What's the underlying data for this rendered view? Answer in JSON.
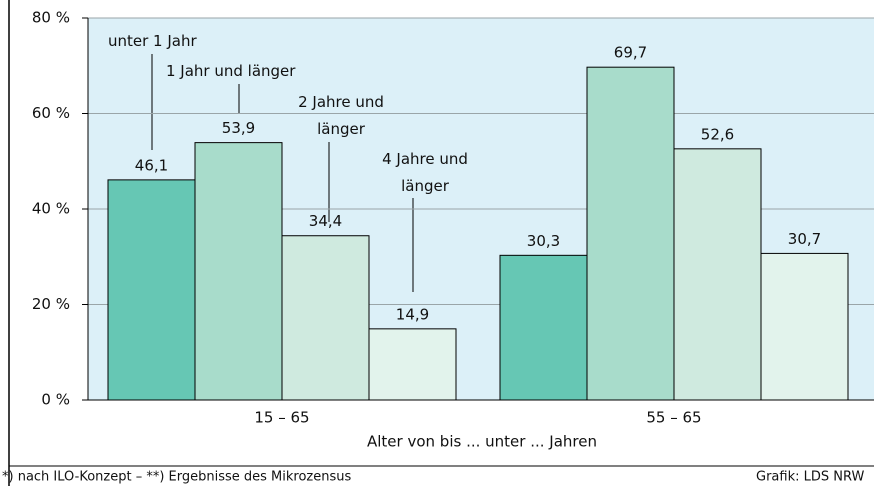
{
  "chart_data": {
    "type": "bar",
    "categories": [
      "15 – 65",
      "55 – 65"
    ],
    "x_label": "Alter von bis ... unter ... Jahren",
    "series": [
      {
        "name": "unter 1 Jahr",
        "color": "#66c7b4",
        "values": [
          46.1,
          30.3
        ],
        "value_labels": [
          "46,1",
          "30,3"
        ]
      },
      {
        "name": "1 Jahr und länger",
        "color": "#a8dccb",
        "values": [
          53.9,
          69.7
        ],
        "value_labels": [
          "53,9",
          "69,7"
        ]
      },
      {
        "name": "2 Jahre und länger",
        "color": "#cfeadf",
        "values": [
          34.4,
          52.6
        ],
        "value_labels": [
          "34,4",
          "52,6"
        ]
      },
      {
        "name": "4 Jahre und länger",
        "color": "#e2f3ec",
        "values": [
          14.9,
          30.7
        ],
        "value_labels": [
          "14,9",
          "30,7"
        ]
      }
    ],
    "ylim": [
      0,
      80
    ],
    "yticks": [
      {
        "value": 0,
        "label": "0 %"
      },
      {
        "value": 20,
        "label": "20 %"
      },
      {
        "value": 40,
        "label": "40 %"
      },
      {
        "value": 60,
        "label": "60 %"
      },
      {
        "value": 80,
        "label": "80 %"
      }
    ],
    "grid": true,
    "footnote": "*) nach ILO-Konzept – **) Ergebnisse des Mikrozensus",
    "source": "Grafik: LDS NRW"
  }
}
